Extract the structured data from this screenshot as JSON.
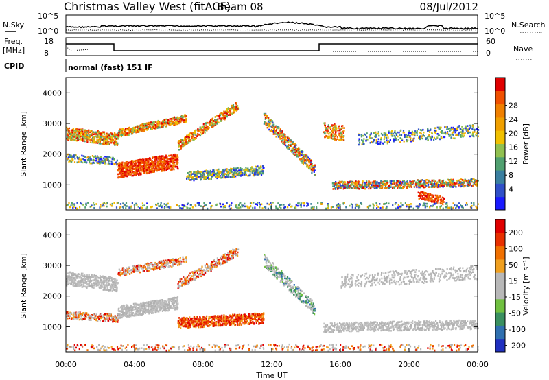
{
  "header": {
    "title": "Christmas Valley West (fitACF)",
    "beam": "Beam 08",
    "date": "08/Jul/2012"
  },
  "summary_panels": {
    "nsky_label": "N.Sky",
    "nsky_ticks": [
      "10^5",
      "10^0"
    ],
    "nsearch_label": "N.Search",
    "nsearch_ticks": [
      "10^5",
      "10^0"
    ],
    "freq_label": "Freq.",
    "freq_unit": "[MHz]",
    "freq_ticks": [
      "18",
      "8"
    ],
    "nave_label": "Nave",
    "nave_ticks": [
      "60",
      "0"
    ],
    "cpid_label": "CPID",
    "cpid_value": "normal (fast) 151 IF"
  },
  "chart_data": [
    {
      "type": "heatmap",
      "name": "power",
      "ylabel": "Slant Range [km]",
      "ylim": [
        180,
        4500
      ],
      "y_ticks": [
        1000,
        2000,
        3000,
        4000
      ],
      "xlim": [
        0,
        24
      ],
      "colorbar_label": "Power [dB]",
      "colorbar_ticks": [
        "4",
        "8",
        "12",
        "16",
        "20",
        "24",
        "28"
      ],
      "colorbar_colors": [
        "#1a1aff",
        "#3050c8",
        "#3a7fa0",
        "#50a070",
        "#90c050",
        "#f0c000",
        "#f0a000",
        "#f08000",
        "#f05000",
        "#e00000"
      ]
    },
    {
      "type": "heatmap",
      "name": "velocity",
      "ylabel": "Slant Range [km]",
      "ylim": [
        180,
        4500
      ],
      "y_ticks": [
        1000,
        2000,
        3000,
        4000
      ],
      "xlim": [
        0,
        24
      ],
      "colorbar_label": "Velocity [m s⁻¹]",
      "colorbar_ticks": [
        "200",
        "100",
        "50",
        "15",
        "-15",
        "-50",
        "-100",
        "-200"
      ],
      "colorbar_colors": [
        "#2030c0",
        "#3070b0",
        "#3a9060",
        "#70c040",
        "#b8b8b8",
        "#b8b8b8",
        "#f0a020",
        "#f07000",
        "#e83000",
        "#e00000"
      ]
    }
  ],
  "x_axis": {
    "label": "Time UT",
    "ticks": [
      "00:00",
      "04:00",
      "08:00",
      "12:00",
      "16:00",
      "20:00",
      "00:00"
    ]
  }
}
